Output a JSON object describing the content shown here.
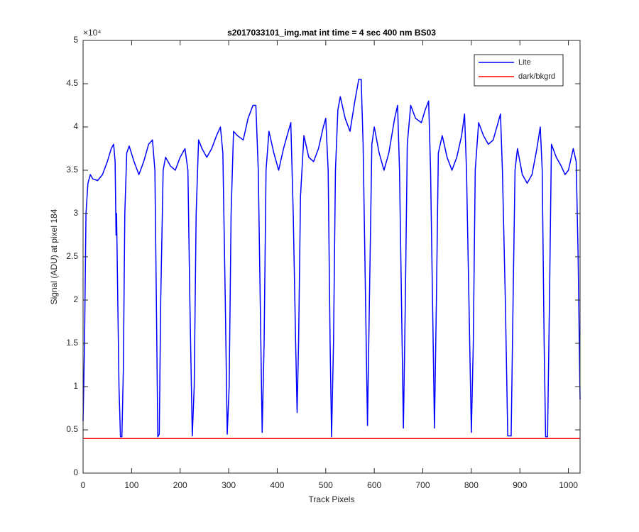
{
  "chart_data": {
    "type": "line",
    "title": "s2017033101_img.mat int time = 4 sec  400 nm BS03",
    "x_label": "Track Pixels",
    "y_label": "Signal (ADU) at pixel 184",
    "y_exponent": "×10⁴",
    "xlim": [
      0,
      1024
    ],
    "ylim": [
      0,
      5
    ],
    "xticks": [
      0,
      100,
      200,
      300,
      400,
      500,
      600,
      700,
      800,
      900,
      1000
    ],
    "yticks": [
      0,
      0.5,
      1,
      1.5,
      2,
      2.5,
      3,
      3.5,
      4,
      4.5,
      5
    ],
    "grid": false,
    "legend": "top-right",
    "series": [
      {
        "name": "Lite",
        "color": "#0000ff",
        "x": [
          0,
          3,
          6,
          10,
          15,
          20,
          30,
          40,
          50,
          58,
          63,
          66,
          68,
          69,
          71,
          74,
          77,
          80,
          83,
          86,
          90,
          95,
          105,
          115,
          125,
          135,
          143,
          148,
          151,
          154,
          157,
          160,
          165,
          170,
          180,
          190,
          200,
          210,
          216,
          220,
          225,
          229,
          233,
          238,
          245,
          255,
          265,
          275,
          283,
          288,
          293,
          297,
          301,
          305,
          310,
          318,
          330,
          340,
          350,
          356,
          361,
          365,
          369,
          373,
          377,
          383,
          393,
          403,
          413,
          423,
          428,
          433,
          438,
          441,
          444,
          448,
          455,
          465,
          475,
          485,
          495,
          500,
          505,
          509,
          512,
          516,
          520,
          525,
          530,
          540,
          550,
          560,
          568,
          573,
          577,
          582,
          586,
          590,
          595,
          600,
          610,
          620,
          630,
          642,
          648,
          652,
          656,
          660,
          664,
          668,
          675,
          685,
          697,
          705,
          712,
          716,
          720,
          724,
          728,
          732,
          740,
          750,
          760,
          770,
          780,
          786,
          790,
          795,
          800,
          804,
          808,
          815,
          825,
          835,
          845,
          855,
          860,
          864,
          870,
          875,
          882,
          886,
          890,
          895,
          905,
          915,
          925,
          935,
          942,
          946,
          950,
          953,
          957,
          961,
          965,
          975,
          985,
          993,
          1000,
          1010,
          1016,
          1020,
          1024
        ],
        "values": [
          0.6,
          1.5,
          3.0,
          3.35,
          3.45,
          3.4,
          3.38,
          3.45,
          3.6,
          3.75,
          3.8,
          3.6,
          2.75,
          3.0,
          2.2,
          1.0,
          0.42,
          0.42,
          1.2,
          3.0,
          3.7,
          3.78,
          3.6,
          3.45,
          3.6,
          3.8,
          3.85,
          3.5,
          2.0,
          0.42,
          0.45,
          2.0,
          3.5,
          3.65,
          3.55,
          3.5,
          3.65,
          3.75,
          3.5,
          2.0,
          0.43,
          1.0,
          3.0,
          3.85,
          3.75,
          3.65,
          3.75,
          3.9,
          4.0,
          3.7,
          2.0,
          0.45,
          1.0,
          3.0,
          3.95,
          3.9,
          3.85,
          4.1,
          4.25,
          4.25,
          3.5,
          2.0,
          0.47,
          1.5,
          3.5,
          3.95,
          3.7,
          3.5,
          3.75,
          3.95,
          4.05,
          3.0,
          1.5,
          0.7,
          1.5,
          3.2,
          3.9,
          3.65,
          3.6,
          3.75,
          4.0,
          4.1,
          3.5,
          1.5,
          0.42,
          1.5,
          3.5,
          4.2,
          4.35,
          4.1,
          3.95,
          4.3,
          4.55,
          4.55,
          3.8,
          2.0,
          0.55,
          2.0,
          3.8,
          4.0,
          3.7,
          3.5,
          3.7,
          4.1,
          4.25,
          3.5,
          2.0,
          0.52,
          2.0,
          3.8,
          4.25,
          4.1,
          4.05,
          4.2,
          4.3,
          3.5,
          2.0,
          0.52,
          2.0,
          3.7,
          3.9,
          3.65,
          3.5,
          3.65,
          3.9,
          4.15,
          3.5,
          2.0,
          0.47,
          1.5,
          3.5,
          4.05,
          3.9,
          3.8,
          3.85,
          4.05,
          4.15,
          3.5,
          2.0,
          0.43,
          0.43,
          2.0,
          3.5,
          3.75,
          3.45,
          3.35,
          3.45,
          3.75,
          4.0,
          3.5,
          1.5,
          0.42,
          0.42,
          2.0,
          3.8,
          3.65,
          3.55,
          3.45,
          3.5,
          3.75,
          3.6,
          2.5,
          0.85
        ]
      },
      {
        "name": "dark/bkgrd",
        "color": "#ff0000",
        "x": [
          1,
          1024
        ],
        "values": [
          0.4,
          0.4
        ]
      }
    ]
  }
}
